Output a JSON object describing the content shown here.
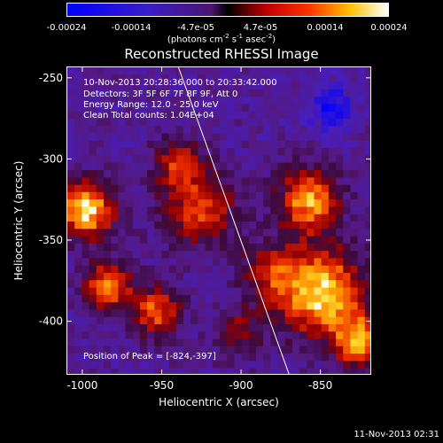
{
  "colorbar": {
    "ticks": [
      "-0.00024",
      "-0.00014",
      "-4.7e-05",
      "4.7e-05",
      "0.00014",
      "0.00024"
    ],
    "units_prefix": "(photons cm",
    "units_exp1": "-2",
    "units_mid1": " s",
    "units_exp2": "-1",
    "units_mid2": " asec",
    "units_exp3": "-2",
    "units_suffix": ")"
  },
  "chart_data": {
    "type": "heatmap",
    "title": "Reconstructed RHESSI Image",
    "xlabel": "Heliocentric X (arcsec)",
    "ylabel": "Heliocentric Y (arcsec)",
    "xlim": [
      -1010,
      -818
    ],
    "ylim": [
      -433,
      -243
    ],
    "xticks": [
      -1000,
      -950,
      -900,
      -850
    ],
    "yticks": [
      -250,
      -300,
      -350,
      -400
    ],
    "colorbar_range": [
      -0.00024,
      0.00024
    ],
    "colormap": "blue-purple-red-orange-yellow-white",
    "limb_line": {
      "x": [
        -940,
        -870
      ],
      "y": [
        -243,
        -433
      ]
    },
    "peak": {
      "x": -824,
      "y": -397
    }
  },
  "annotations": {
    "time_range": "10-Nov-2013 20:28:36.000 to 20:33:42.000",
    "detectors": "Detectors: 3F 5F 6F 7F 8F 9F, Att 0",
    "energy": "Energy Range: 12.0 - 25.0 keV",
    "clean": "Clean    Total counts: 1.04E+04",
    "peak": "Position of Peak = [-824,-397]"
  },
  "footer": {
    "timestamp": "11-Nov-2013 02:31"
  }
}
